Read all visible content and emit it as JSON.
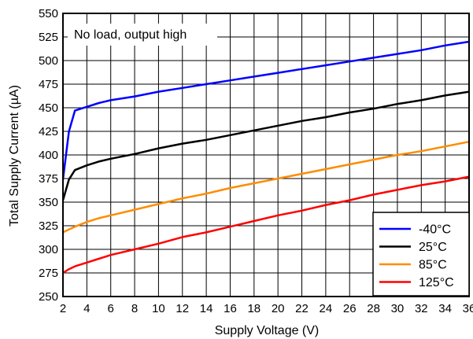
{
  "chart_data": {
    "type": "line",
    "xlabel": "Supply Voltage (V)",
    "ylabel": "Total Supply Current (µA)",
    "xlim": [
      2,
      36
    ],
    "ylim": [
      250,
      550
    ],
    "xticks": [
      2,
      4,
      6,
      8,
      10,
      12,
      14,
      16,
      18,
      20,
      22,
      24,
      26,
      28,
      30,
      32,
      34,
      36
    ],
    "yticks": [
      250,
      275,
      300,
      325,
      350,
      375,
      400,
      425,
      450,
      475,
      500,
      525,
      550
    ],
    "grid": true,
    "annotation": "No load, output high",
    "legend_position": "bottom-right",
    "series": [
      {
        "name": "-40°C",
        "color": "#0000ff",
        "x": [
          2,
          2.5,
          3,
          4,
          5,
          6,
          8,
          10,
          12,
          14,
          16,
          18,
          20,
          22,
          24,
          26,
          28,
          30,
          32,
          34,
          36
        ],
        "y": [
          374,
          425,
          447,
          451,
          455,
          458,
          462,
          467,
          471,
          475,
          479,
          483,
          487,
          491,
          495,
          499,
          503,
          507,
          511,
          516,
          520
        ]
      },
      {
        "name": "25°C",
        "color": "#000000",
        "x": [
          2,
          2.5,
          3,
          4,
          5,
          6,
          8,
          10,
          12,
          14,
          16,
          18,
          20,
          22,
          24,
          26,
          28,
          30,
          32,
          34,
          36
        ],
        "y": [
          352,
          374,
          384,
          389,
          393,
          396,
          401,
          407,
          412,
          416,
          421,
          426,
          431,
          436,
          440,
          445,
          449,
          454,
          458,
          463,
          467
        ]
      },
      {
        "name": "85°C",
        "color": "#ff8c00",
        "x": [
          2,
          2.5,
          3,
          4,
          5,
          6,
          8,
          10,
          12,
          14,
          16,
          18,
          20,
          22,
          24,
          26,
          28,
          30,
          32,
          34,
          36
        ],
        "y": [
          318,
          321,
          324,
          329,
          333,
          336,
          342,
          348,
          354,
          359,
          365,
          370,
          375,
          380,
          385,
          390,
          395,
          400,
          404,
          409,
          414
        ]
      },
      {
        "name": "125°C",
        "color": "#ff0000",
        "x": [
          2,
          2.5,
          3,
          4,
          5,
          6,
          8,
          10,
          12,
          14,
          16,
          18,
          20,
          22,
          24,
          26,
          28,
          30,
          32,
          34,
          36
        ],
        "y": [
          275,
          279,
          282,
          286,
          290,
          294,
          300,
          306,
          313,
          318,
          324,
          330,
          336,
          341,
          347,
          352,
          358,
          363,
          368,
          372,
          377
        ]
      }
    ]
  }
}
